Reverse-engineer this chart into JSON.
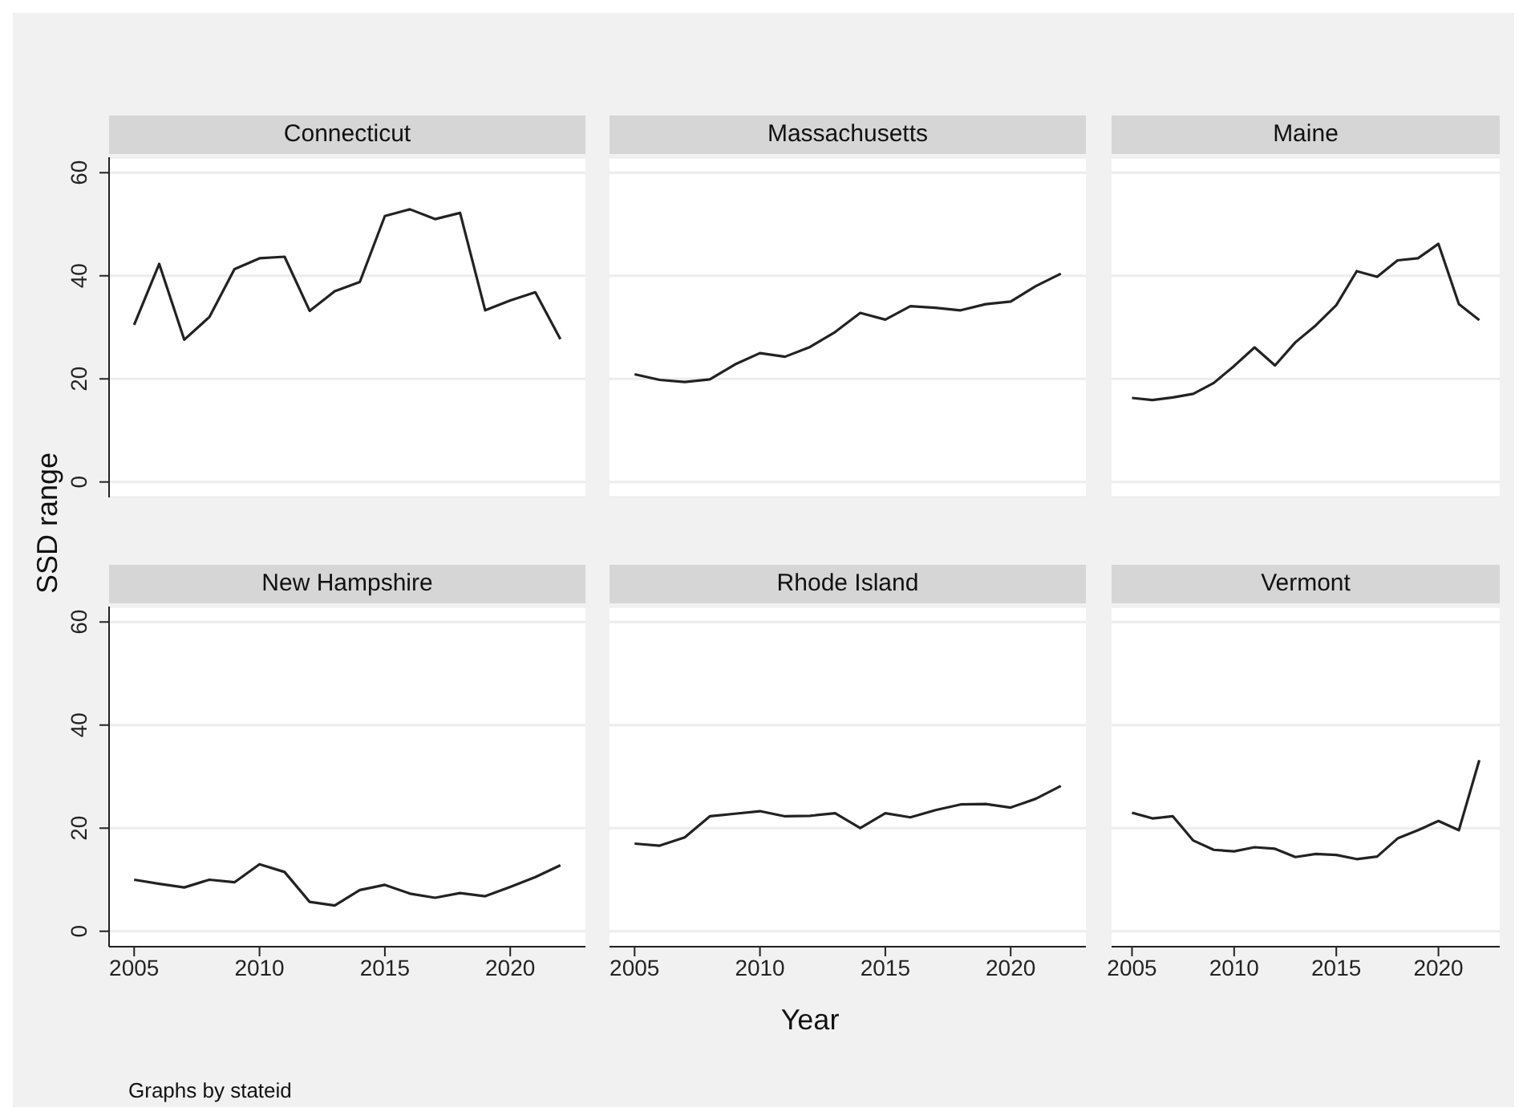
{
  "chart_data": [
    {
      "type": "line",
      "title": "Connecticut",
      "ylabel": "SSD range",
      "x": [
        2005,
        2006,
        2007,
        2008,
        2009,
        2010,
        2011,
        2012,
        2013,
        2014,
        2015,
        2016,
        2017,
        2018,
        2019,
        2020,
        2021,
        2022
      ],
      "series": [
        {
          "color": "#222222",
          "values": [
            30.5,
            42.3,
            27.6,
            32,
            41.3,
            43.4,
            43.7,
            33.2,
            37,
            38.8,
            51.6,
            52.9,
            51,
            52.2,
            33.3,
            35.2,
            36.8,
            27.7
          ]
        }
      ],
      "xlim": [
        2004,
        2023
      ],
      "xticks": [
        2005,
        2010,
        2015,
        2020
      ],
      "ylim": [
        -3,
        63
      ],
      "yticks": [
        0,
        20,
        40,
        60
      ],
      "grid": "y",
      "tick_labels": "y",
      "marker": "none",
      "line_style": "solid",
      "legend": false
    },
    {
      "type": "line",
      "title": "Massachusetts",
      "x": [
        2005,
        2006,
        2007,
        2008,
        2009,
        2010,
        2011,
        2012,
        2013,
        2014,
        2015,
        2016,
        2017,
        2018,
        2019,
        2020,
        2021,
        2022
      ],
      "series": [
        {
          "color": "#222222",
          "values": [
            20.9,
            19.8,
            19.4,
            19.9,
            22.8,
            25,
            24.3,
            26.2,
            29.1,
            32.8,
            31.5,
            34.1,
            33.8,
            33.3,
            34.5,
            35,
            38,
            40.4
          ]
        }
      ],
      "xlim": [
        2004,
        2023
      ],
      "xticks": [
        2005,
        2010,
        2015,
        2020
      ],
      "ylim": [
        -3,
        63
      ],
      "yticks": [
        0,
        20,
        40,
        60
      ],
      "grid": "y",
      "tick_labels": false,
      "marker": "none",
      "line_style": "solid",
      "legend": false
    },
    {
      "type": "line",
      "title": "Maine",
      "x": [
        2005,
        2006,
        2007,
        2008,
        2009,
        2010,
        2011,
        2012,
        2013,
        2014,
        2015,
        2016,
        2017,
        2018,
        2019,
        2020,
        2021,
        2022
      ],
      "series": [
        {
          "color": "#222222",
          "values": [
            16.3,
            15.9,
            16.4,
            17.1,
            19.2,
            22.5,
            26.1,
            22.6,
            27.1,
            30.4,
            34.3,
            40.9,
            39.8,
            43,
            43.4,
            46.2,
            34.5,
            31.4
          ]
        }
      ],
      "xlim": [
        2004,
        2023
      ],
      "xticks": [
        2005,
        2010,
        2015,
        2020
      ],
      "ylim": [
        -3,
        63
      ],
      "yticks": [
        0,
        20,
        40,
        60
      ],
      "grid": "y",
      "tick_labels": false,
      "marker": "none",
      "line_style": "solid",
      "legend": false
    },
    {
      "type": "line",
      "title": "New Hampshire",
      "annotations": [
        "Graphs by stateid"
      ],
      "x": [
        2005,
        2006,
        2007,
        2008,
        2009,
        2010,
        2011,
        2012,
        2013,
        2014,
        2015,
        2016,
        2017,
        2018,
        2019,
        2020,
        2021,
        2022
      ],
      "series": [
        {
          "color": "#222222",
          "values": [
            10,
            9.2,
            8.5,
            10,
            9.5,
            13,
            11.5,
            5.7,
            5,
            8,
            9,
            7.3,
            6.5,
            7.4,
            6.8,
            8.6,
            10.5,
            12.8
          ]
        }
      ],
      "xlim": [
        2004,
        2023
      ],
      "xticks": [
        2005,
        2010,
        2015,
        2020
      ],
      "ylim": [
        -3,
        63
      ],
      "yticks": [
        0,
        20,
        40,
        60
      ],
      "grid": "y",
      "marker": "none",
      "line_style": "solid",
      "legend": false
    },
    {
      "type": "line",
      "title": "Rhode Island",
      "xlabel": "Year",
      "x": [
        2005,
        2006,
        2007,
        2008,
        2009,
        2010,
        2011,
        2012,
        2013,
        2014,
        2015,
        2016,
        2017,
        2018,
        2019,
        2020,
        2021,
        2022
      ],
      "series": [
        {
          "color": "#222222",
          "values": [
            17,
            16.6,
            18.2,
            22.3,
            22.8,
            23.3,
            22.3,
            22.4,
            22.9,
            20,
            22.9,
            22.1,
            23.5,
            24.6,
            24.7,
            24,
            25.7,
            28.2
          ]
        }
      ],
      "xlim": [
        2004,
        2023
      ],
      "xticks": [
        2005,
        2010,
        2015,
        2020
      ],
      "ylim": [
        -3,
        63
      ],
      "yticks": [
        0,
        20,
        40,
        60
      ],
      "grid": "y",
      "tick_labels": "x",
      "marker": "none",
      "line_style": "solid",
      "legend": false
    },
    {
      "type": "line",
      "title": "Vermont",
      "x": [
        2005,
        2006,
        2007,
        2008,
        2009,
        2010,
        2011,
        2012,
        2013,
        2014,
        2015,
        2016,
        2017,
        2018,
        2019,
        2020,
        2021,
        2022
      ],
      "series": [
        {
          "color": "#222222",
          "values": [
            23,
            21.9,
            22.3,
            17.6,
            15.8,
            15.5,
            16.3,
            16,
            14.4,
            15,
            14.8,
            14,
            14.5,
            18,
            19.6,
            21.4,
            19.6,
            33.2
          ]
        }
      ],
      "xlim": [
        2004,
        2023
      ],
      "xticks": [
        2005,
        2010,
        2015,
        2020
      ],
      "ylim": [
        -3,
        63
      ],
      "yticks": [
        0,
        20,
        40,
        60
      ],
      "grid": "y",
      "tick_labels": "x",
      "marker": "none",
      "line_style": "solid",
      "legend": false
    }
  ]
}
